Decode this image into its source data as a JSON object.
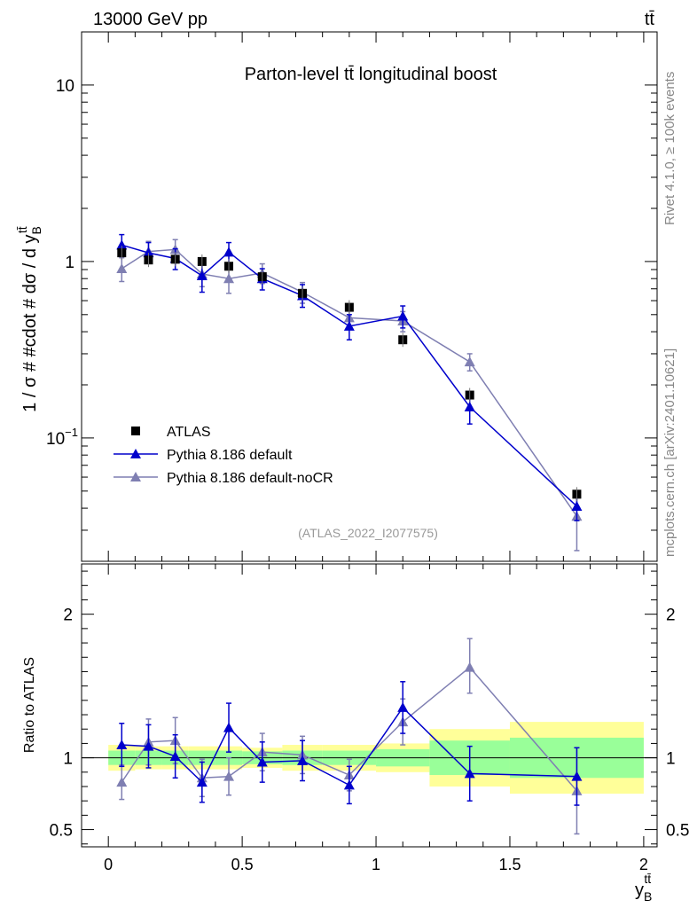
{
  "header": {
    "energy_label": "13000 GeV pp",
    "process_label": "tt̄"
  },
  "side_labels": {
    "rivet": "Rivet 4.1.0, ≥ 100k events",
    "mcplots": "mcplots.cern.ch [arXiv:2401.10621]"
  },
  "colors": {
    "atlas": "#000000",
    "default": "#0000cc",
    "nocr": "#7f7fb2",
    "band_inner": "#99ff99",
    "band_outer": "#ffff99",
    "analysis": "#999999"
  },
  "chart_data": [
    {
      "type": "line",
      "title": "Parton-level tt̄ longitudinal boost",
      "analysis_tag": "(ATLAS_2022_I2077575)",
      "ylabel": "1 / σ # #cdot # dσ / d y",
      "ylabel_sup": "tt̄",
      "ylabel_sub": "B",
      "yscale": "log",
      "xlim": [
        -0.1,
        2.05
      ],
      "ylim": [
        0.02,
        20
      ],
      "yticks": [
        {
          "value": 0.1,
          "label": "10",
          "sup": "−1"
        },
        {
          "value": 1,
          "label": "1"
        },
        {
          "value": 10,
          "label": "10"
        }
      ],
      "legend_position": "lower-left",
      "x": [
        0.05,
        0.15,
        0.25,
        0.35,
        0.45,
        0.575,
        0.725,
        0.9,
        1.1,
        1.35,
        1.75
      ],
      "series": [
        {
          "name": "ATLAS",
          "marker": "square",
          "values": [
            1.12,
            1.02,
            1.03,
            1.0,
            0.94,
            0.82,
            0.66,
            0.55,
            0.36,
            0.175,
            0.048
          ]
        },
        {
          "name": "Pythia 8.186 default",
          "marker": "triangle",
          "values": [
            1.24,
            1.12,
            1.04,
            0.83,
            1.13,
            0.8,
            0.64,
            0.43,
            0.49,
            0.15,
            0.041
          ],
          "err_lo": [
            1.08,
            0.98,
            0.9,
            0.67,
            0.98,
            0.69,
            0.55,
            0.36,
            0.42,
            0.12,
            0.034
          ],
          "err_hi": [
            1.42,
            1.28,
            1.18,
            0.97,
            1.28,
            0.91,
            0.74,
            0.5,
            0.56,
            0.175,
            0.048
          ]
        },
        {
          "name": "Pythia 8.186 default-noCR",
          "marker": "triangle",
          "values": [
            0.91,
            1.14,
            1.17,
            0.85,
            0.8,
            0.86,
            0.67,
            0.48,
            0.46,
            0.27,
            0.036
          ],
          "err_lo": [
            0.77,
            0.98,
            1.02,
            0.72,
            0.66,
            0.75,
            0.58,
            0.42,
            0.4,
            0.24,
            0.023
          ],
          "err_hi": [
            1.05,
            1.3,
            1.33,
            0.98,
            0.94,
            0.97,
            0.76,
            0.54,
            0.52,
            0.3,
            0.05
          ]
        }
      ]
    },
    {
      "type": "line",
      "ylabel": "Ratio to ATLAS",
      "xlabel": "y",
      "xlabel_sup": "tt̄",
      "xlabel_sub": "B",
      "xlim": [
        -0.1,
        2.05
      ],
      "ylim": [
        0.38,
        2.35
      ],
      "xticks": [
        {
          "value": 0,
          "label": "0"
        },
        {
          "value": 0.5,
          "label": "0.5"
        },
        {
          "value": 1,
          "label": "1"
        },
        {
          "value": 1.5,
          "label": "1.5"
        },
        {
          "value": 2,
          "label": "2"
        }
      ],
      "yticks": [
        {
          "value": 0.5,
          "label": "0.5"
        },
        {
          "value": 1,
          "label": "1"
        },
        {
          "value": 2,
          "label": "2"
        }
      ],
      "bands": {
        "edges": [
          0,
          0.1,
          0.2,
          0.3,
          0.4,
          0.5,
          0.65,
          0.8,
          1.0,
          1.2,
          1.5,
          2.0
        ],
        "inner": [
          0.05,
          0.05,
          0.05,
          0.05,
          0.05,
          0.045,
          0.05,
          0.05,
          0.06,
          0.12,
          0.14
        ],
        "outer": [
          0.09,
          0.08,
          0.08,
          0.08,
          0.08,
          0.07,
          0.09,
          0.09,
          0.1,
          0.2,
          0.25
        ]
      },
      "x": [
        0.05,
        0.15,
        0.25,
        0.35,
        0.45,
        0.575,
        0.725,
        0.9,
        1.1,
        1.35,
        1.75
      ],
      "series": [
        {
          "name": "Pythia 8.186 default",
          "marker": "triangle",
          "values": [
            1.09,
            1.08,
            1.01,
            0.83,
            1.21,
            0.97,
            0.98,
            0.81,
            1.35,
            0.89,
            0.87
          ],
          "err_lo": [
            0.94,
            0.93,
            0.86,
            0.69,
            1.04,
            0.83,
            0.84,
            0.68,
            1.17,
            0.7,
            0.67
          ],
          "err_hi": [
            1.24,
            1.23,
            1.16,
            0.97,
            1.38,
            1.11,
            1.12,
            0.94,
            1.53,
            1.08,
            1.07
          ]
        },
        {
          "name": "Pythia 8.186 default-noCR",
          "marker": "triangle",
          "values": [
            0.83,
            1.11,
            1.12,
            0.86,
            0.87,
            1.04,
            1.02,
            0.88,
            1.25,
            1.63,
            0.77
          ],
          "err_lo": [
            0.71,
            0.95,
            0.96,
            0.73,
            0.74,
            0.91,
            0.89,
            0.77,
            1.09,
            1.45,
            0.47
          ],
          "err_hi": [
            0.95,
            1.27,
            1.28,
            0.99,
            1.0,
            1.17,
            1.15,
            0.99,
            1.41,
            1.83,
            1.07
          ]
        }
      ]
    }
  ]
}
